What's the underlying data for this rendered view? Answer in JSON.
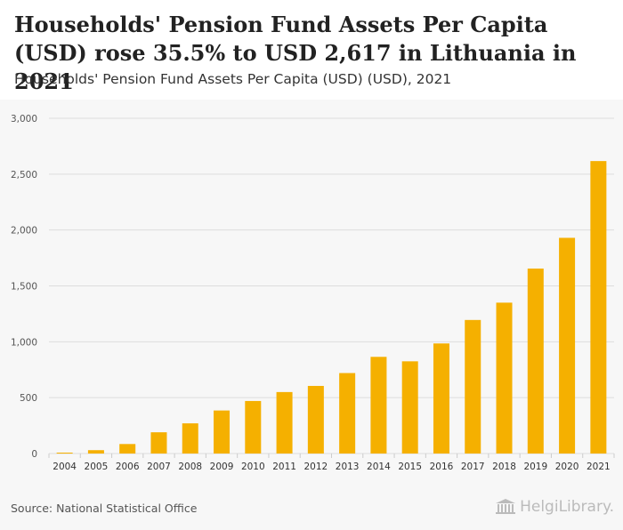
{
  "header": {
    "title": "Households' Pension Fund Assets Per Capita (USD) rose 35.5% to USD 2,617 in Lithuania in 2021",
    "subtitle": "Households' Pension Fund Assets Per Capita (USD) (USD), 2021"
  },
  "footer": {
    "source": "Source: National Statistical Office",
    "logo_text": "HelgiLibrary."
  },
  "colors": {
    "bar": "#f5b000",
    "grid": "#dddddd",
    "plot_bg": "#f7f7f7",
    "tick_text": "#555555"
  },
  "chart_data": {
    "type": "bar",
    "title": "Households' Pension Fund Assets Per Capita (USD) (USD), 2021",
    "xlabel": "",
    "ylabel": "",
    "categories": [
      "2004",
      "2005",
      "2006",
      "2007",
      "2008",
      "2009",
      "2010",
      "2011",
      "2012",
      "2013",
      "2014",
      "2015",
      "2016",
      "2017",
      "2018",
      "2019",
      "2020",
      "2021"
    ],
    "values": [
      8,
      30,
      85,
      190,
      270,
      385,
      470,
      550,
      605,
      720,
      865,
      825,
      985,
      1195,
      1350,
      1655,
      1930,
      2617
    ],
    "ylim": [
      0,
      3000
    ],
    "yticks": [
      0,
      500,
      1000,
      1500,
      2000,
      2500,
      3000
    ],
    "ytick_labels": [
      "0",
      "500",
      "1,000",
      "1,500",
      "2,000",
      "2,500",
      "3,000"
    ],
    "grid": true
  }
}
